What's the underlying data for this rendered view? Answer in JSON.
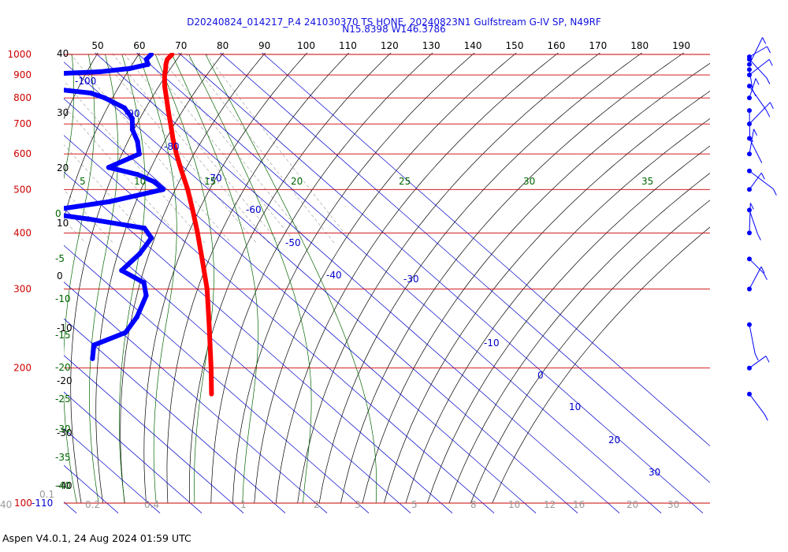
{
  "header": {
    "title_line1": "D20240824_014217_P.4 241030370 TS HONE, 20240823N1 Gulfstream G-IV SP, N49RF",
    "title_line2": "N15.8398 W146.3786"
  },
  "footer": {
    "text": "Aspen V4.0.1, 24 Aug 2024  01:59 UTC"
  },
  "colors": {
    "pressure_lines": "#cc0000",
    "isotherms": "#0000cc",
    "dry_adiabats": "#000000",
    "moist_adiabats": "#006600",
    "mixing_ratio": "#999999",
    "temperature_trace": "#ff0000",
    "dewpoint_trace": "#0000ff",
    "wind_barbs": "#0000ff"
  },
  "chart_data": {
    "type": "skew-t log-p",
    "y_axis": {
      "label": "",
      "scale": "log",
      "range_hPa": [
        1000,
        100
      ]
    },
    "pressure_labels": [
      {
        "text": "100-110",
        "p": 100
      },
      {
        "text": "200",
        "p": 200
      },
      {
        "text": "300",
        "p": 300
      },
      {
        "text": "400",
        "p": 400
      },
      {
        "text": "500",
        "p": 500
      },
      {
        "text": "600",
        "p": 600
      },
      {
        "text": "700",
        "p": 700
      },
      {
        "text": "800",
        "p": 800
      },
      {
        "text": "900",
        "p": 900
      },
      {
        "text": "1000",
        "p": 1000
      }
    ],
    "isotherm_labels": [
      "-100",
      "-90",
      "-80",
      "-70",
      "-60",
      "-50",
      "-40",
      "-30",
      "-10",
      "0",
      "10",
      "20",
      "30"
    ],
    "top_scale_labels": [
      "50",
      "60",
      "70",
      "80",
      "90",
      "100",
      "110",
      "120",
      "130",
      "140",
      "150",
      "160",
      "170",
      "180",
      "190"
    ],
    "left_scale_labels": [
      "40",
      "30",
      "20",
      "10",
      "0",
      "-10",
      "-20",
      "-30",
      "-40"
    ],
    "left_scale_green_labels": [
      "0",
      "-5",
      "-10",
      "-15",
      "-20",
      "-25",
      "-30",
      "-35",
      "-40"
    ],
    "moist_adiabat_labels": [
      "5",
      "10",
      "15",
      "20",
      "25",
      "30",
      "35"
    ],
    "mixing_ratio_labels": [
      "0.1",
      "0.2",
      "0.4",
      "1",
      "2",
      "3",
      "5",
      "8",
      "10",
      "12",
      "16",
      "20",
      "30",
      "40"
    ],
    "temperature_profile": [
      {
        "p": 1000,
        "t": 28.0
      },
      {
        "p": 975,
        "t": 25.5
      },
      {
        "p": 950,
        "t": 23.8
      },
      {
        "p": 925,
        "t": 22.3
      },
      {
        "p": 900,
        "t": 20.6
      },
      {
        "p": 850,
        "t": 17.6
      },
      {
        "p": 800,
        "t": 14.8
      },
      {
        "p": 750,
        "t": 11.8
      },
      {
        "p": 700,
        "t": 8.7
      },
      {
        "p": 650,
        "t": 5.3
      },
      {
        "p": 600,
        "t": 1.9
      },
      {
        "p": 550,
        "t": -1.5
      },
      {
        "p": 500,
        "t": -5.1
      },
      {
        "p": 450,
        "t": -9.5
      },
      {
        "p": 400,
        "t": -14.6
      },
      {
        "p": 350,
        "t": -20.6
      },
      {
        "p": 300,
        "t": -27.6
      },
      {
        "p": 250,
        "t": -36.8
      },
      {
        "p": 200,
        "t": -48.2
      },
      {
        "p": 175,
        "t": -55.2
      }
    ],
    "dewpoint_profile": [
      {
        "p": 1000,
        "td": 23.0
      },
      {
        "p": 975,
        "td": 20.5
      },
      {
        "p": 950,
        "td": 19.5
      },
      {
        "p": 930,
        "td": 14.0
      },
      {
        "p": 915,
        "td": 6.0
      },
      {
        "p": 905,
        "td": -6.0
      },
      {
        "p": 880,
        "td": -7.0
      },
      {
        "p": 860,
        "td": -17.0
      },
      {
        "p": 840,
        "td": -11.0
      },
      {
        "p": 820,
        "td": -2.0
      },
      {
        "p": 800,
        "td": 0.0
      },
      {
        "p": 760,
        "td": 2.0
      },
      {
        "p": 720,
        "td": 1.0
      },
      {
        "p": 680,
        "td": -2.0
      },
      {
        "p": 640,
        "td": -4.0
      },
      {
        "p": 600,
        "td": -7.0
      },
      {
        "p": 560,
        "td": -18.0
      },
      {
        "p": 540,
        "td": -13.0
      },
      {
        "p": 520,
        "td": -11.0
      },
      {
        "p": 500,
        "td": -11.0
      },
      {
        "p": 470,
        "td": -27.0
      },
      {
        "p": 445,
        "td": -47.0
      },
      {
        "p": 430,
        "td": -37.0
      },
      {
        "p": 410,
        "td": -26.0
      },
      {
        "p": 390,
        "td": -27.0
      },
      {
        "p": 360,
        "td": -34.0
      },
      {
        "p": 330,
        "td": -43.0
      },
      {
        "p": 310,
        "td": -41.0
      },
      {
        "p": 290,
        "td": -44.0
      },
      {
        "p": 260,
        "td": -52.0
      },
      {
        "p": 240,
        "td": -59.0
      },
      {
        "p": 225,
        "td": -70.0
      },
      {
        "p": 210,
        "td": -74.0
      }
    ],
    "wind_barbs_hPa": [
      1000,
      975,
      950,
      925,
      900,
      850,
      800,
      750,
      700,
      650,
      600,
      550,
      500,
      450,
      400,
      350,
      300,
      250,
      200,
      175
    ]
  }
}
